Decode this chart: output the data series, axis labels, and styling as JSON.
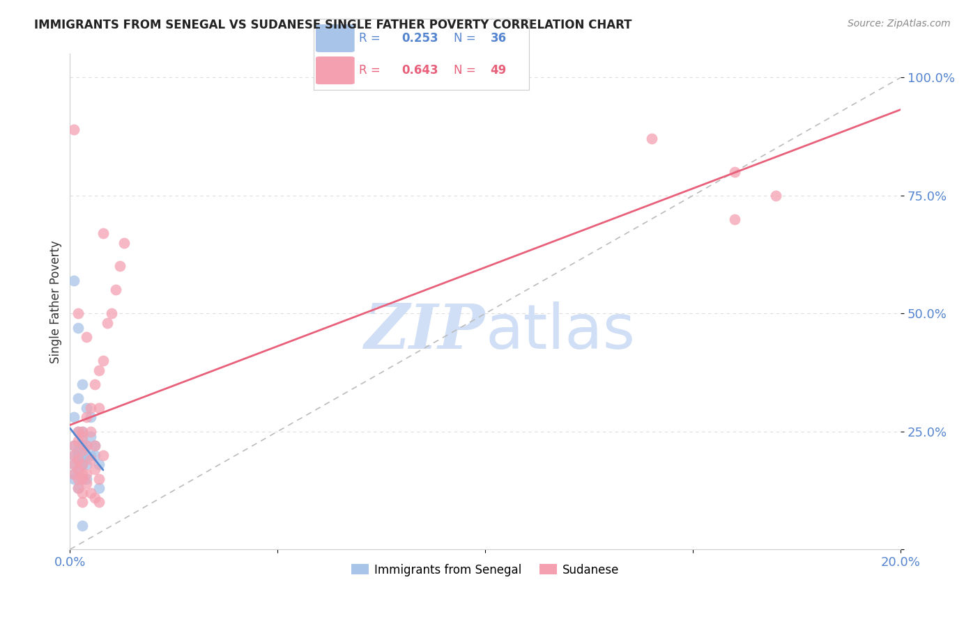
{
  "title": "IMMIGRANTS FROM SENEGAL VS SUDANESE SINGLE FATHER POVERTY CORRELATION CHART",
  "source": "Source: ZipAtlas.com",
  "ylabel": "Single Father Poverty",
  "legend_blue_R": "0.253",
  "legend_blue_N": "36",
  "legend_pink_R": "0.643",
  "legend_pink_N": "49",
  "legend_blue_label": "Immigrants from Senegal",
  "legend_pink_label": "Sudanese",
  "blue_color": "#a8c4e8",
  "pink_color": "#f4a0b0",
  "blue_line_color": "#5585d0",
  "pink_line_color": "#e8607a",
  "diagonal_color": "#bbbbbb",
  "watermark_text": "ZIPatlas",
  "watermark_color": "#d0dff5",
  "axis_tick_color": "#5585d0",
  "grid_color": "#dddddd",
  "blue_scatter_x": [
    0.001,
    0.001,
    0.001,
    0.001,
    0.001,
    0.002,
    0.002,
    0.002,
    0.002,
    0.002,
    0.003,
    0.003,
    0.003,
    0.003,
    0.003,
    0.003,
    0.004,
    0.004,
    0.004,
    0.004,
    0.005,
    0.005,
    0.005,
    0.006,
    0.006,
    0.007,
    0.001,
    0.002,
    0.003,
    0.002,
    0.001,
    0.003,
    0.004,
    0.002,
    0.007,
    0.003
  ],
  "blue_scatter_y": [
    0.2,
    0.18,
    0.22,
    0.16,
    0.15,
    0.21,
    0.25,
    0.19,
    0.2,
    0.17,
    0.23,
    0.2,
    0.18,
    0.22,
    0.25,
    0.19,
    0.3,
    0.22,
    0.18,
    0.2,
    0.28,
    0.24,
    0.2,
    0.22,
    0.2,
    0.18,
    0.57,
    0.47,
    0.35,
    0.32,
    0.28,
    0.15,
    0.15,
    0.13,
    0.13,
    0.05
  ],
  "pink_scatter_x": [
    0.001,
    0.001,
    0.001,
    0.001,
    0.002,
    0.002,
    0.002,
    0.002,
    0.003,
    0.003,
    0.003,
    0.003,
    0.004,
    0.004,
    0.004,
    0.005,
    0.005,
    0.005,
    0.006,
    0.006,
    0.006,
    0.007,
    0.007,
    0.007,
    0.008,
    0.008,
    0.009,
    0.01,
    0.011,
    0.012,
    0.013,
    0.002,
    0.003,
    0.004,
    0.005,
    0.006,
    0.007,
    0.008,
    0.003,
    0.004,
    0.002,
    0.003,
    0.001,
    0.002,
    0.003,
    0.16,
    0.16,
    0.17,
    0.14
  ],
  "pink_scatter_y": [
    0.2,
    0.18,
    0.16,
    0.22,
    0.19,
    0.23,
    0.17,
    0.25,
    0.21,
    0.18,
    0.16,
    0.24,
    0.28,
    0.22,
    0.45,
    0.3,
    0.25,
    0.19,
    0.35,
    0.22,
    0.17,
    0.38,
    0.3,
    0.15,
    0.4,
    0.2,
    0.48,
    0.5,
    0.55,
    0.6,
    0.65,
    0.13,
    0.15,
    0.14,
    0.12,
    0.11,
    0.1,
    0.67,
    0.1,
    0.16,
    0.15,
    0.12,
    0.89,
    0.5,
    0.25,
    0.7,
    0.8,
    0.75,
    0.87
  ],
  "xlim": [
    0.0,
    0.2
  ],
  "ylim": [
    0.0,
    1.05
  ],
  "xticks": [
    0.0,
    0.05,
    0.1,
    0.15,
    0.2
  ],
  "yticks": [
    0.0,
    0.25,
    0.5,
    0.75,
    1.0
  ],
  "ytick_labels": [
    "",
    "25.0%",
    "50.0%",
    "75.0%",
    "100.0%"
  ]
}
